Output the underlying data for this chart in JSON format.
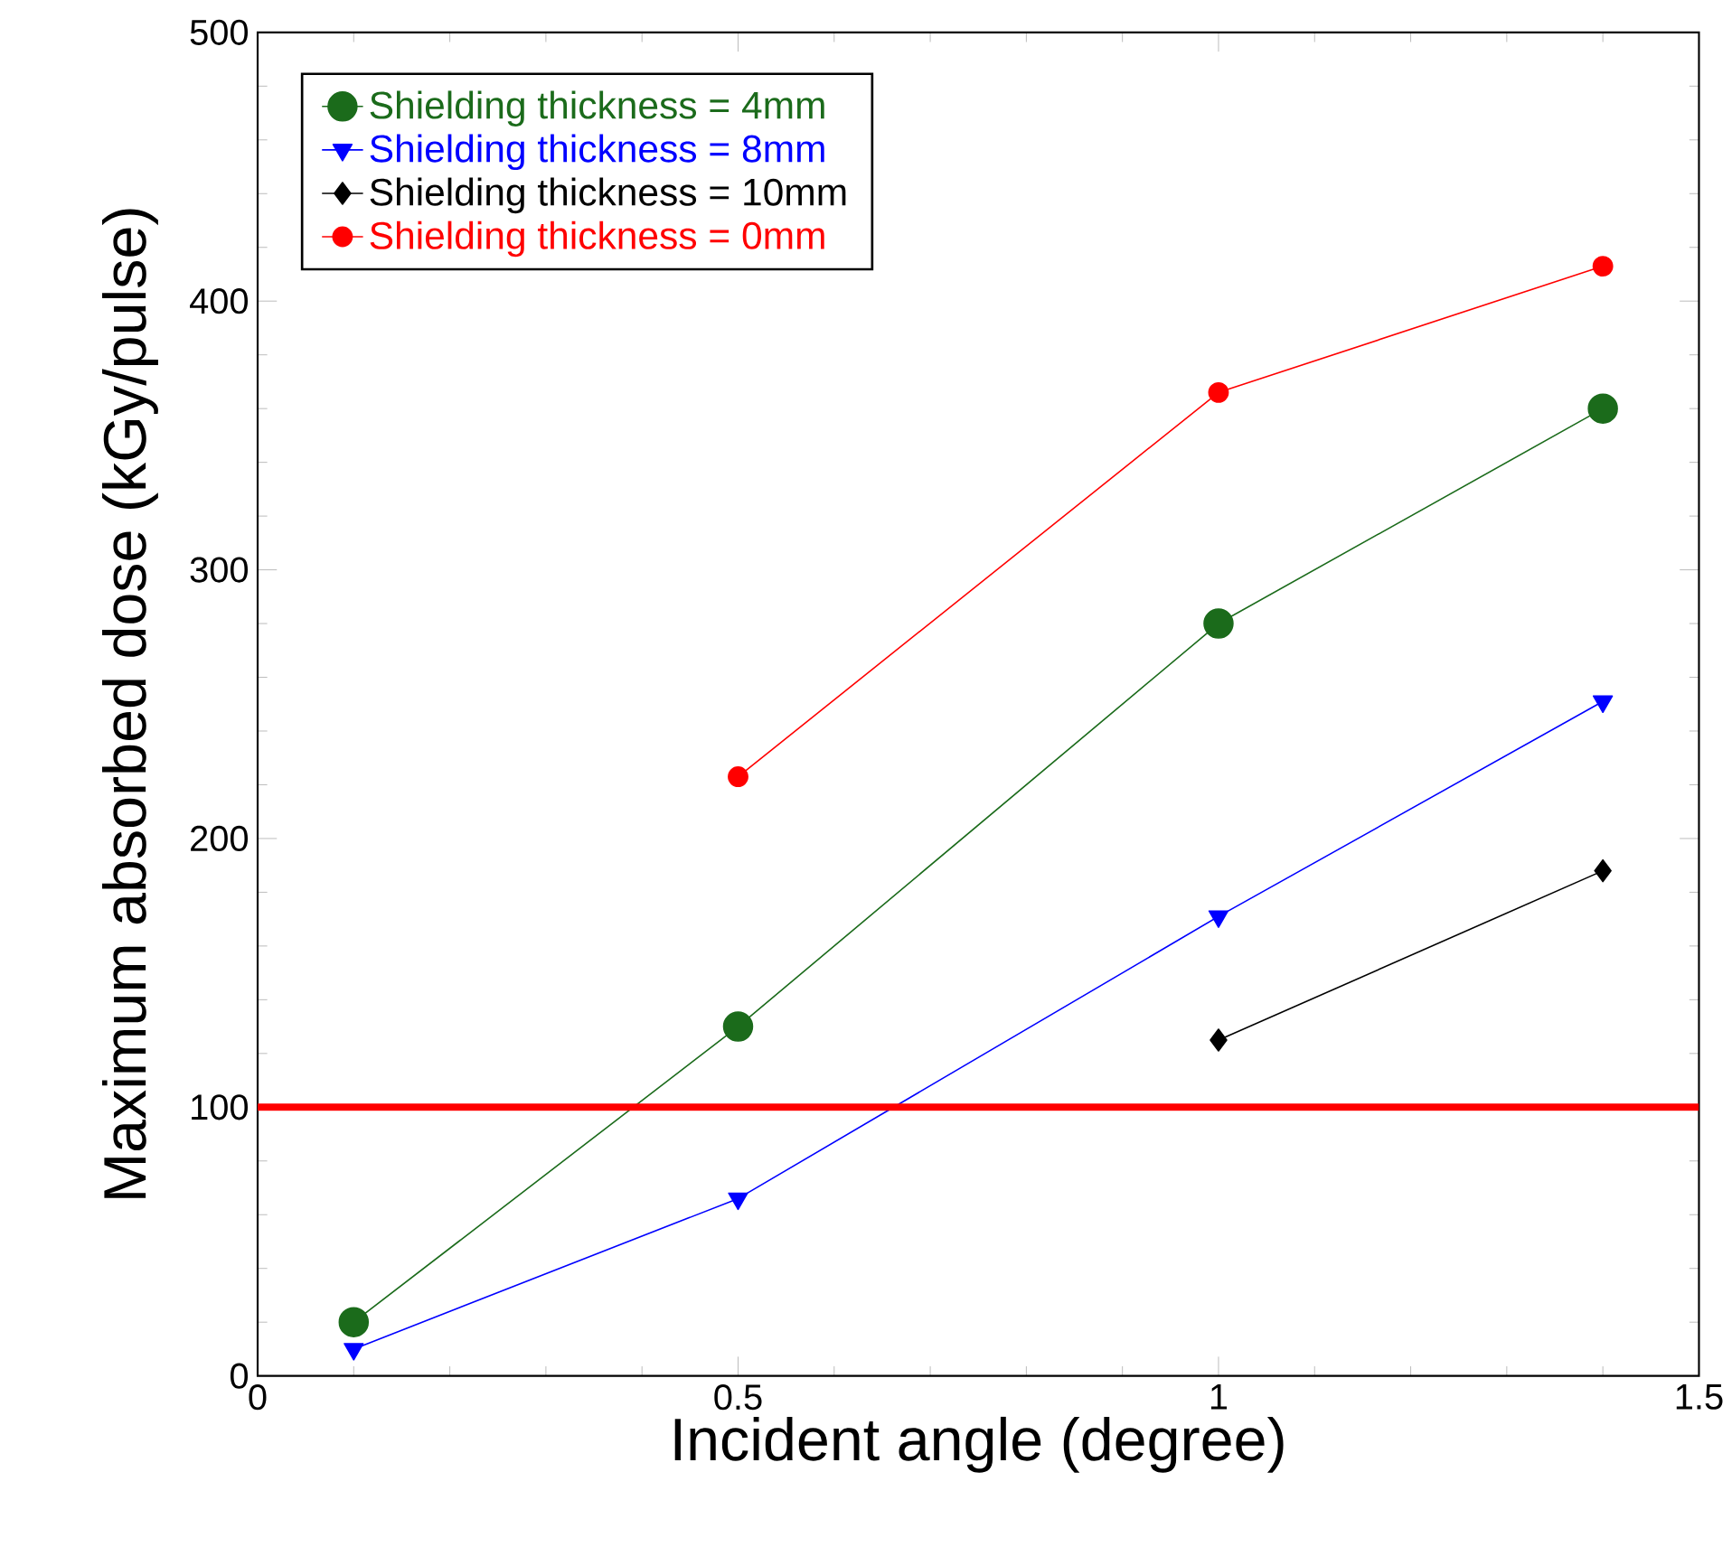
{
  "chart_data": {
    "type": "line",
    "xlabel": "Incident angle (degree)",
    "ylabel": "Maximum absorbed dose    (kGy/pulse)",
    "series": [
      {
        "name": "Shielding thickness = 4mm",
        "color": "#1b6b1b",
        "marker": "circle",
        "x": [
          0.1,
          0.5,
          1,
          1.4
        ],
        "values": [
          20,
          130,
          280,
          360
        ]
      },
      {
        "name": "Shielding  thickness = 8mm",
        "color": "#0000ff",
        "marker": "triangle",
        "x": [
          0.1,
          0.5,
          1,
          1.4
        ],
        "values": [
          10,
          66,
          171,
          251
        ]
      },
      {
        "name": "Shielding thickness = 10mm",
        "color": "#000000",
        "marker": "diamond",
        "x": [
          1,
          1.4
        ],
        "values": [
          125,
          188
        ]
      },
      {
        "name": "Shielding thickness = 0mm",
        "color": "#ff0000",
        "marker": "circle",
        "x": [
          0.5,
          1,
          1.4
        ],
        "values": [
          223,
          366,
          413
        ]
      }
    ],
    "xlim": [
      0,
      1.5
    ],
    "xticks": [
      0,
      0.5,
      1,
      1.5
    ],
    "ylim": [
      0,
      500
    ],
    "yticks": [
      0,
      100,
      200,
      300,
      400,
      500
    ],
    "ref_lines": [
      {
        "axis": "y",
        "value": 100,
        "color": "#ff0000"
      }
    ],
    "grid": false,
    "legend": "top left"
  }
}
